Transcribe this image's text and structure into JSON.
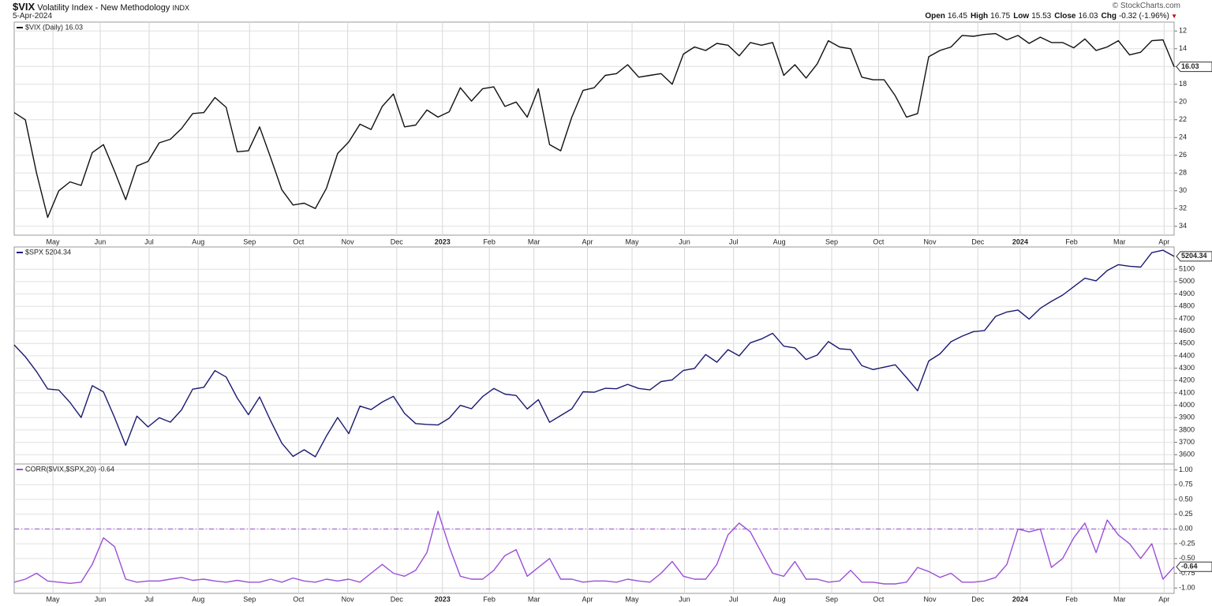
{
  "header": {
    "symbol": "$VIX",
    "name": "Volatility Index - New Methodology",
    "exchange": "INDX",
    "date": "5-Apr-2024",
    "quote": [
      {
        "label": "Open",
        "value": "16.45"
      },
      {
        "label": "High",
        "value": "16.75"
      },
      {
        "label": "Low",
        "value": "15.53"
      },
      {
        "label": "Close",
        "value": "16.03"
      },
      {
        "label": "Chg",
        "value": "-0.32 (-1.96%)"
      }
    ],
    "logo": "© StockCharts.com"
  },
  "chart_data": [
    {
      "type": "line",
      "legend": "top-left",
      "grid": true,
      "series": [
        {
          "name": "$VIX (Daily) 16.03",
          "color": "#111111",
          "values": [
            21.2,
            22,
            28,
            33,
            30,
            29,
            29.4,
            25.7,
            24.8,
            27.8,
            31,
            27.2,
            26.7,
            24.6,
            24.2,
            23,
            21.3,
            21.2,
            19.5,
            20.6,
            25.6,
            25.5,
            22.8,
            26.3,
            29.9,
            31.6,
            31.4,
            32,
            29.7,
            25.8,
            24.5,
            22.5,
            23.1,
            20.5,
            19.1,
            22.8,
            22.6,
            20.9,
            21.7,
            21.1,
            18.4,
            19.9,
            18.5,
            18.3,
            20.5,
            20,
            21.7,
            18.5,
            24.8,
            25.5,
            21.7,
            18.7,
            18.4,
            17,
            16.8,
            15.8,
            17.2,
            17,
            16.8,
            18,
            14.6,
            13.8,
            14.2,
            13.4,
            13.6,
            14.8,
            13.3,
            13.6,
            13.3,
            17,
            15.8,
            17.3,
            15.7,
            13.1,
            13.8,
            14,
            17.2,
            17.5,
            17.5,
            19.3,
            21.7,
            21.3,
            14.9,
            14.2,
            13.8,
            12.5,
            12.6,
            12.4,
            12.3,
            13,
            12.5,
            13.4,
            12.7,
            13.3,
            13.3,
            13.9,
            12.9,
            14.2,
            13.8,
            13.1,
            14.7,
            14.4,
            13.1,
            13,
            16.03
          ]
        }
      ],
      "xlim": [
        0,
        104
      ],
      "ylim": [
        35,
        11
      ],
      "yticks": [
        12,
        14,
        16,
        18,
        20,
        22,
        24,
        26,
        28,
        30,
        32,
        34
      ],
      "xticks": [
        {
          "value": 3.47,
          "label": "May"
        },
        {
          "value": 7.71,
          "label": "Jun"
        },
        {
          "value": 12.1,
          "label": "Jul"
        },
        {
          "value": 16.5,
          "label": "Aug"
        },
        {
          "value": 21.1,
          "label": "Sep"
        },
        {
          "value": 25.5,
          "label": "Oct"
        },
        {
          "value": 29.9,
          "label": "Nov"
        },
        {
          "value": 34.3,
          "label": "Dec"
        },
        {
          "value": 38.4,
          "label": "2023"
        },
        {
          "value": 42.6,
          "label": "Feb"
        },
        {
          "value": 46.6,
          "label": "Mar"
        },
        {
          "value": 51.4,
          "label": "Apr"
        },
        {
          "value": 55.4,
          "label": "May"
        },
        {
          "value": 60.1,
          "label": "Jun"
        },
        {
          "value": 64.5,
          "label": "Jul"
        },
        {
          "value": 68.6,
          "label": "Aug"
        },
        {
          "value": 73.3,
          "label": "Sep"
        },
        {
          "value": 77.5,
          "label": "Oct"
        },
        {
          "value": 82.1,
          "label": "Nov"
        },
        {
          "value": 86.4,
          "label": "Dec"
        },
        {
          "value": 90.2,
          "label": "2024"
        },
        {
          "value": 94.8,
          "label": "Feb"
        },
        {
          "value": 99.1,
          "label": "Mar"
        },
        {
          "value": 103.1,
          "label": "Apr"
        }
      ]
    },
    {
      "type": "line",
      "legend": "top-left",
      "grid": true,
      "series": [
        {
          "name": "$SPX 5204.34",
          "color": "#1a1a72",
          "values": [
            4488,
            4392,
            4272,
            4132,
            4123,
            4023,
            3901,
            4158,
            4108,
            3901,
            3675,
            3912,
            3825,
            3899,
            3863,
            3962,
            4130,
            4145,
            4280,
            4228,
            4058,
            3924,
            4067,
            3873,
            3693,
            3586,
            3640,
            3583,
            3752,
            3901,
            3771,
            3993,
            3965,
            4026,
            4072,
            3934,
            3852,
            3845,
            3840,
            3895,
            3999,
            3972,
            4070,
            4136,
            4090,
            4079,
            3970,
            4045,
            3862,
            3917,
            3971,
            4109,
            4105,
            4137,
            4133,
            4169,
            4136,
            4124,
            4191,
            4205,
            4282,
            4298,
            4410,
            4348,
            4450,
            4399,
            4505,
            4536,
            4582,
            4478,
            4464,
            4370,
            4406,
            4515,
            4457,
            4450,
            4320,
            4288,
            4308,
            4327,
            4224,
            4117,
            4358,
            4415,
            4514,
            4559,
            4595,
            4604,
            4719,
            4754,
            4770,
            4697,
            4784,
            4840,
            4891,
            4959,
            5027,
            5006,
            5089,
            5137,
            5124,
            5117,
            5234,
            5254,
            5204.34
          ]
        }
      ],
      "xlim": [
        0,
        104
      ],
      "ylim": [
        3525,
        5280
      ],
      "yticks": [
        3600,
        3700,
        3800,
        3900,
        4000,
        4100,
        4200,
        4300,
        4400,
        4500,
        4600,
        4700,
        4800,
        4900,
        5000,
        5100
      ]
    },
    {
      "type": "line",
      "legend": "top-left",
      "grid": true,
      "hline": 0,
      "series": [
        {
          "name": "CORR($VIX,$SPX,20) -0.64",
          "color": "#9b4fd6",
          "values": [
            -0.9,
            -0.85,
            -0.75,
            -0.88,
            -0.9,
            -0.92,
            -0.9,
            -0.6,
            -0.15,
            -0.3,
            -0.85,
            -0.9,
            -0.88,
            -0.88,
            -0.85,
            -0.82,
            -0.87,
            -0.85,
            -0.88,
            -0.9,
            -0.87,
            -0.9,
            -0.9,
            -0.85,
            -0.9,
            -0.83,
            -0.88,
            -0.9,
            -0.85,
            -0.88,
            -0.85,
            -0.9,
            -0.75,
            -0.6,
            -0.75,
            -0.8,
            -0.7,
            -0.4,
            0.3,
            -0.3,
            -0.8,
            -0.85,
            -0.85,
            -0.7,
            -0.45,
            -0.35,
            -0.8,
            -0.65,
            -0.5,
            -0.85,
            -0.85,
            -0.9,
            -0.88,
            -0.88,
            -0.9,
            -0.85,
            -0.88,
            -0.9,
            -0.75,
            -0.55,
            -0.8,
            -0.85,
            -0.85,
            -0.6,
            -0.1,
            0.1,
            -0.05,
            -0.4,
            -0.75,
            -0.8,
            -0.55,
            -0.85,
            -0.85,
            -0.9,
            -0.88,
            -0.7,
            -0.9,
            -0.9,
            -0.93,
            -0.93,
            -0.9,
            -0.65,
            -0.72,
            -0.82,
            -0.75,
            -0.9,
            -0.9,
            -0.88,
            -0.82,
            -0.6,
            0,
            -0.05,
            0,
            -0.65,
            -0.5,
            -0.15,
            0.1,
            -0.4,
            0.15,
            -0.1,
            -0.25,
            -0.5,
            -0.25,
            -0.85,
            -0.64
          ]
        }
      ],
      "xlim": [
        0,
        104
      ],
      "ylim": [
        -1.09,
        1.1
      ],
      "yticks": [
        {
          "value": 1,
          "label": "1.00"
        },
        {
          "value": 0.75,
          "label": "0.75"
        },
        {
          "value": 0.5,
          "label": "0.50"
        },
        {
          "value": 0.25,
          "label": "0.25"
        },
        {
          "value": 0,
          "label": "0.00"
        },
        {
          "value": -0.25,
          "label": "-0.25"
        },
        {
          "value": -0.5,
          "label": "-0.50"
        },
        {
          "value": -0.75,
          "label": "-0.75"
        },
        {
          "value": -1,
          "label": "-1.00"
        }
      ],
      "xticks": [
        {
          "value": 3.47,
          "label": "May"
        },
        {
          "value": 7.71,
          "label": "Jun"
        },
        {
          "value": 12.1,
          "label": "Jul"
        },
        {
          "value": 16.5,
          "label": "Aug"
        },
        {
          "value": 21.1,
          "label": "Sep"
        },
        {
          "value": 25.5,
          "label": "Oct"
        },
        {
          "value": 29.9,
          "label": "Nov"
        },
        {
          "value": 34.3,
          "label": "Dec"
        },
        {
          "value": 38.4,
          "label": "2023"
        },
        {
          "value": 42.6,
          "label": "Feb"
        },
        {
          "value": 46.6,
          "label": "Mar"
        },
        {
          "value": 51.4,
          "label": "Apr"
        },
        {
          "value": 55.4,
          "label": "May"
        },
        {
          "value": 60.1,
          "label": "Jun"
        },
        {
          "value": 64.5,
          "label": "Jul"
        },
        {
          "value": 68.6,
          "label": "Aug"
        },
        {
          "value": 73.3,
          "label": "Sep"
        },
        {
          "value": 77.5,
          "label": "Oct"
        },
        {
          "value": 82.1,
          "label": "Nov"
        },
        {
          "value": 86.4,
          "label": "Dec"
        },
        {
          "value": 90.2,
          "label": "2024"
        },
        {
          "value": 94.8,
          "label": "Feb"
        },
        {
          "value": 99.1,
          "label": "Mar"
        },
        {
          "value": 103.1,
          "label": "Apr"
        }
      ]
    }
  ]
}
